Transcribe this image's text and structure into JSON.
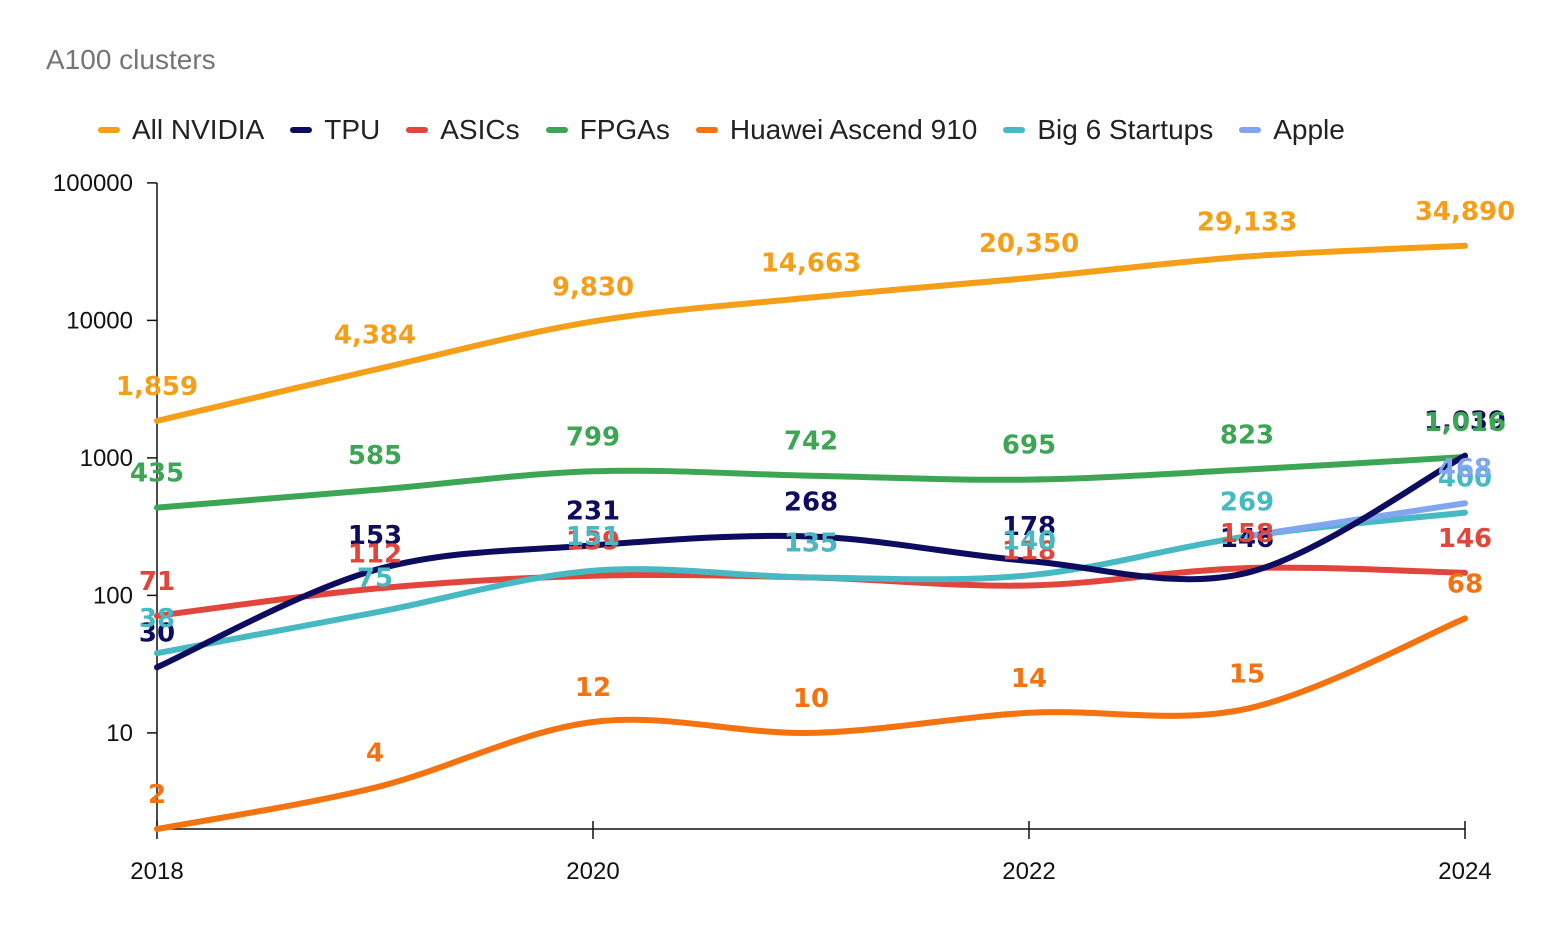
{
  "chart_data": {
    "type": "line",
    "title": "A100 clusters",
    "xlabel": "",
    "ylabel": "",
    "yscale": "log",
    "ylim": [
      2,
      100000
    ],
    "y_ticks": [
      "10",
      "100",
      "1000",
      "10000",
      "100000"
    ],
    "x": [
      2018,
      2019,
      2020,
      2021,
      2022,
      2023,
      2024
    ],
    "x_ticks": [
      "2018",
      "2020",
      "2022",
      "2024"
    ],
    "legend_position": "top",
    "series": [
      {
        "name": "All NVIDIA",
        "color": "#F59E17",
        "values": [
          1859,
          4384,
          9830,
          14663,
          20350,
          29133,
          34890
        ],
        "labels": [
          "1,859",
          "4,384",
          "9,830",
          "14,663",
          "20,350",
          "29,133",
          "34,890"
        ]
      },
      {
        "name": "TPU",
        "color": "#0D0C5E",
        "values": [
          30,
          153,
          231,
          268,
          178,
          146,
          1039
        ],
        "labels": [
          "30",
          "153",
          "231",
          "268",
          "178",
          "146",
          "1,039"
        ]
      },
      {
        "name": "ASICs",
        "color": "#E2453C",
        "values": [
          71,
          112,
          139,
          135,
          118,
          158,
          146
        ],
        "labels": [
          "71",
          "112",
          "139",
          "135",
          "118",
          "158",
          "146"
        ]
      },
      {
        "name": "FPGAs",
        "color": "#3DA655",
        "values": [
          435,
          585,
          799,
          742,
          695,
          823,
          1016
        ],
        "labels": [
          "435",
          "585",
          "799",
          "742",
          "695",
          "823",
          "1,016"
        ]
      },
      {
        "name": "Huawei Ascend 910",
        "color": "#F4720F",
        "values": [
          2,
          4,
          12,
          10,
          14,
          15,
          68
        ],
        "labels": [
          "2",
          "4",
          "12",
          "10",
          "14",
          "15",
          "68"
        ]
      },
      {
        "name": "Big 6 Startups",
        "color": "#47B9C3",
        "values": [
          38,
          75,
          151,
          135,
          140,
          269,
          400
        ],
        "labels": [
          "38",
          "75",
          "151",
          "135",
          "140",
          "269",
          "400"
        ]
      },
      {
        "name": "Apple",
        "color": "#7FA6EE",
        "values": [
          null,
          null,
          null,
          null,
          null,
          269,
          468
        ],
        "labels": [
          null,
          null,
          null,
          null,
          null,
          null,
          "468"
        ]
      }
    ]
  }
}
